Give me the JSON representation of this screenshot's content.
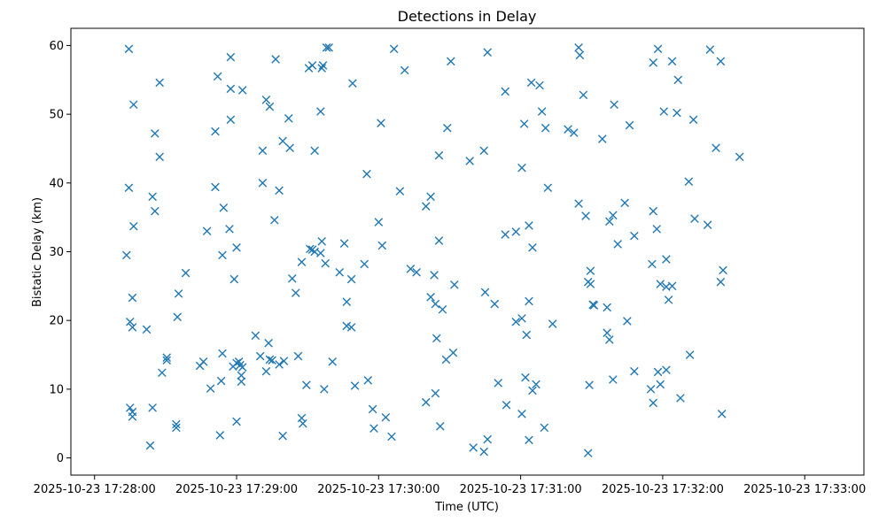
{
  "chart_data": {
    "type": "scatter",
    "title": "Detections in Delay",
    "xlabel": "Time (UTC)",
    "ylabel": "Bistatic Delay (km)",
    "marker": "x",
    "color": "#1f77b4",
    "grid": false,
    "xlim": [
      "2025-10-23 17:27:50",
      "2025-10-23 17:33:25"
    ],
    "ylim": [
      -2.5,
      62.5
    ],
    "x_ticks": [
      "2025-10-23 17:28:00",
      "2025-10-23 17:29:00",
      "2025-10-23 17:30:00",
      "2025-10-23 17:31:00",
      "2025-10-23 17:32:00",
      "2025-10-23 17:33:00"
    ],
    "y_ticks": [
      0,
      10,
      20,
      30,
      40,
      50,
      60
    ],
    "points": [
      [
        "2025-10-23 17:28:14.5",
        59.5
      ],
      [
        "2025-10-23 17:28:14.5",
        39.3
      ],
      [
        "2025-10-23 17:28:13.5",
        29.5
      ],
      [
        "2025-10-23 17:28:16.5",
        51.4
      ],
      [
        "2025-10-23 17:28:16.5",
        33.7
      ],
      [
        "2025-10-23 17:28:16.0",
        23.3
      ],
      [
        "2025-10-23 17:28:15.0",
        19.8
      ],
      [
        "2025-10-23 17:28:16.0",
        19.0
      ],
      [
        "2025-10-23 17:28:15.0",
        7.3
      ],
      [
        "2025-10-23 17:28:16.0",
        6.7
      ],
      [
        "2025-10-23 17:28:16.0",
        6.0
      ],
      [
        "2025-10-23 17:28:22.0",
        18.7
      ],
      [
        "2025-10-23 17:28:23.5",
        1.8
      ],
      [
        "2025-10-23 17:28:24.5",
        7.3
      ],
      [
        "2025-10-23 17:28:24.5",
        38.0
      ],
      [
        "2025-10-23 17:28:25.5",
        35.9
      ],
      [
        "2025-10-23 17:28:25.5",
        47.2
      ],
      [
        "2025-10-23 17:28:27.5",
        54.6
      ],
      [
        "2025-10-23 17:28:27.5",
        43.8
      ],
      [
        "2025-10-23 17:28:28.5",
        12.4
      ],
      [
        "2025-10-23 17:28:30.5",
        14.6
      ],
      [
        "2025-10-23 17:28:30.5",
        14.2
      ],
      [
        "2025-10-23 17:28:34.5",
        4.9
      ],
      [
        "2025-10-23 17:28:34.5",
        4.4
      ],
      [
        "2025-10-23 17:28:35.0",
        20.5
      ],
      [
        "2025-10-23 17:28:35.5",
        23.9
      ],
      [
        "2025-10-23 17:28:38.5",
        26.9
      ],
      [
        "2025-10-23 17:28:44.5",
        13.4
      ],
      [
        "2025-10-23 17:28:46.0",
        14.0
      ],
      [
        "2025-10-23 17:28:47.5",
        33.0
      ],
      [
        "2025-10-23 17:28:49.0",
        10.1
      ],
      [
        "2025-10-23 17:28:51.0",
        47.5
      ],
      [
        "2025-10-23 17:28:51.0",
        39.4
      ],
      [
        "2025-10-23 17:28:52.0",
        55.5
      ],
      [
        "2025-10-23 17:28:53.0",
        3.3
      ],
      [
        "2025-10-23 17:28:53.5",
        11.2
      ],
      [
        "2025-10-23 17:28:54.5",
        36.4
      ],
      [
        "2025-10-23 17:28:54.0",
        29.5
      ],
      [
        "2025-10-23 17:28:54.0",
        15.2
      ],
      [
        "2025-10-23 17:28:57.5",
        58.3
      ],
      [
        "2025-10-23 17:28:57.5",
        53.7
      ],
      [
        "2025-10-23 17:28:57.5",
        49.2
      ],
      [
        "2025-10-23 17:28:57.0",
        33.3
      ],
      [
        "2025-10-23 17:28:59.0",
        26.0
      ],
      [
        "2025-10-23 17:28:58.5",
        13.3
      ],
      [
        "2025-10-23 17:29:00.0",
        13.8
      ],
      [
        "2025-10-23 17:29:00.0",
        30.6
      ],
      [
        "2025-10-23 17:29:00.0",
        5.3
      ],
      [
        "2025-10-23 17:29:01.0",
        14.0
      ],
      [
        "2025-10-23 17:29:01.5",
        13.5
      ],
      [
        "2025-10-23 17:29:02.0",
        12.0
      ],
      [
        "2025-10-23 17:29:02.0",
        11.1
      ],
      [
        "2025-10-23 17:29:02.5",
        53.5
      ],
      [
        "2025-10-23 17:29:02.5",
        13.2
      ],
      [
        "2025-10-23 17:29:08.0",
        17.8
      ],
      [
        "2025-10-23 17:29:10.0",
        14.8
      ],
      [
        "2025-10-23 17:29:11.0",
        44.7
      ],
      [
        "2025-10-23 17:29:11.0",
        40.0
      ],
      [
        "2025-10-23 17:29:12.5",
        52.1
      ],
      [
        "2025-10-23 17:29:12.5",
        12.6
      ],
      [
        "2025-10-23 17:29:13.5",
        16.7
      ],
      [
        "2025-10-23 17:29:14.0",
        51.1
      ],
      [
        "2025-10-23 17:29:14.0",
        14.3
      ],
      [
        "2025-10-23 17:29:15.0",
        14.2
      ],
      [
        "2025-10-23 17:29:16.0",
        34.6
      ],
      [
        "2025-10-23 17:29:16.5",
        58.0
      ],
      [
        "2025-10-23 17:29:18.0",
        38.9
      ],
      [
        "2025-10-23 17:29:18.0",
        13.6
      ],
      [
        "2025-10-23 17:29:19.5",
        46.1
      ],
      [
        "2025-10-23 17:29:19.5",
        3.2
      ],
      [
        "2025-10-23 17:29:20.0",
        14.1
      ],
      [
        "2025-10-23 17:29:22.0",
        49.4
      ],
      [
        "2025-10-23 17:29:22.5",
        45.1
      ],
      [
        "2025-10-23 17:29:23.5",
        26.1
      ],
      [
        "2025-10-23 17:29:25.0",
        24.0
      ],
      [
        "2025-10-23 17:29:26.0",
        14.8
      ],
      [
        "2025-10-23 17:29:27.5",
        28.5
      ],
      [
        "2025-10-23 17:29:27.5",
        5.8
      ],
      [
        "2025-10-23 17:29:28.0",
        5.0
      ],
      [
        "2025-10-23 17:29:29.5",
        10.6
      ],
      [
        "2025-10-23 17:29:30.5",
        56.7
      ],
      [
        "2025-10-23 17:29:31.0",
        30.4
      ],
      [
        "2025-10-23 17:29:32.0",
        57.1
      ],
      [
        "2025-10-23 17:29:32.0",
        30.3
      ],
      [
        "2025-10-23 17:29:33.0",
        44.7
      ],
      [
        "2025-10-23 17:29:33.0",
        30.0
      ],
      [
        "2025-10-23 17:29:35.5",
        50.4
      ],
      [
        "2025-10-23 17:29:35.5",
        29.8
      ],
      [
        "2025-10-23 17:29:36.0",
        56.7
      ],
      [
        "2025-10-23 17:29:36.0",
        31.5
      ],
      [
        "2025-10-23 17:29:36.5",
        57.1
      ],
      [
        "2025-10-23 17:29:37.0",
        10.0
      ],
      [
        "2025-10-23 17:29:37.5",
        28.3
      ],
      [
        "2025-10-23 17:29:38.0",
        59.7
      ],
      [
        "2025-10-23 17:29:39.0",
        59.7
      ],
      [
        "2025-10-23 17:29:40.5",
        14.0
      ],
      [
        "2025-10-23 17:29:43.5",
        27.0
      ],
      [
        "2025-10-23 17:29:45.5",
        31.2
      ],
      [
        "2025-10-23 17:29:46.5",
        22.7
      ],
      [
        "2025-10-23 17:29:46.5",
        19.2
      ],
      [
        "2025-10-23 17:29:48.5",
        19.0
      ],
      [
        "2025-10-23 17:29:48.5",
        26.0
      ],
      [
        "2025-10-23 17:29:49.0",
        54.5
      ],
      [
        "2025-10-23 17:29:50.0",
        10.5
      ],
      [
        "2025-10-23 17:29:54.0",
        28.2
      ],
      [
        "2025-10-23 17:29:55.0",
        41.3
      ],
      [
        "2025-10-23 17:29:55.5",
        11.3
      ],
      [
        "2025-10-23 17:29:57.5",
        7.1
      ],
      [
        "2025-10-23 17:29:58.0",
        4.3
      ],
      [
        "2025-10-23 17:30:00.0",
        34.3
      ],
      [
        "2025-10-23 17:30:01.0",
        48.7
      ],
      [
        "2025-10-23 17:30:01.5",
        30.9
      ],
      [
        "2025-10-23 17:30:03.0",
        5.9
      ],
      [
        "2025-10-23 17:30:05.5",
        3.1
      ],
      [
        "2025-10-23 17:30:06.5",
        59.5
      ],
      [
        "2025-10-23 17:30:09.0",
        38.8
      ],
      [
        "2025-10-23 17:30:11.0",
        56.4
      ],
      [
        "2025-10-23 17:30:13.5",
        27.5
      ],
      [
        "2025-10-23 17:30:16.0",
        27.0
      ],
      [
        "2025-10-23 17:30:20.0",
        36.6
      ],
      [
        "2025-10-23 17:30:20.0",
        8.1
      ],
      [
        "2025-10-23 17:30:22.0",
        38.0
      ],
      [
        "2025-10-23 17:30:22.0",
        23.4
      ],
      [
        "2025-10-23 17:30:23.5",
        26.6
      ],
      [
        "2025-10-23 17:30:24.0",
        9.4
      ],
      [
        "2025-10-23 17:30:24.0",
        22.4
      ],
      [
        "2025-10-23 17:30:24.5",
        17.4
      ],
      [
        "2025-10-23 17:30:25.5",
        44.0
      ],
      [
        "2025-10-23 17:30:25.5",
        31.6
      ],
      [
        "2025-10-23 17:30:26.0",
        4.6
      ],
      [
        "2025-10-23 17:30:27.0",
        21.6
      ],
      [
        "2025-10-23 17:30:28.5",
        14.3
      ],
      [
        "2025-10-23 17:30:29.0",
        48.0
      ],
      [
        "2025-10-23 17:30:30.5",
        57.7
      ],
      [
        "2025-10-23 17:30:31.5",
        15.3
      ],
      [
        "2025-10-23 17:30:32.0",
        25.2
      ],
      [
        "2025-10-23 17:30:38.5",
        43.2
      ],
      [
        "2025-10-23 17:30:40.0",
        1.5
      ],
      [
        "2025-10-23 17:30:44.5",
        44.7
      ],
      [
        "2025-10-23 17:30:45.0",
        24.1
      ],
      [
        "2025-10-23 17:30:44.5",
        0.9
      ],
      [
        "2025-10-23 17:30:46.0",
        2.7
      ],
      [
        "2025-10-23 17:30:46.0",
        59.0
      ],
      [
        "2025-10-23 17:30:49.0",
        22.4
      ],
      [
        "2025-10-23 17:30:50.5",
        10.9
      ],
      [
        "2025-10-23 17:30:53.5",
        53.3
      ],
      [
        "2025-10-23 17:30:53.5",
        32.5
      ],
      [
        "2025-10-23 17:30:54.0",
        7.7
      ],
      [
        "2025-10-23 17:30:58.0",
        32.9
      ],
      [
        "2025-10-23 17:30:58.0",
        19.8
      ],
      [
        "2025-10-23 17:31:00.5",
        42.2
      ],
      [
        "2025-10-23 17:31:00.5",
        20.3
      ],
      [
        "2025-10-23 17:31:00.5",
        6.4
      ],
      [
        "2025-10-23 17:31:01.5",
        48.6
      ],
      [
        "2025-10-23 17:31:02.0",
        11.7
      ],
      [
        "2025-10-23 17:31:02.5",
        17.9
      ],
      [
        "2025-10-23 17:31:03.5",
        33.8
      ],
      [
        "2025-10-23 17:31:03.5",
        22.8
      ],
      [
        "2025-10-23 17:31:03.5",
        2.6
      ],
      [
        "2025-10-23 17:31:04.5",
        54.6
      ],
      [
        "2025-10-23 17:31:05.0",
        30.6
      ],
      [
        "2025-10-23 17:31:05.0",
        9.8
      ],
      [
        "2025-10-23 17:31:06.5",
        10.7
      ],
      [
        "2025-10-23 17:31:08.0",
        54.2
      ],
      [
        "2025-10-23 17:31:09.0",
        50.4
      ],
      [
        "2025-10-23 17:31:10.5",
        48.0
      ],
      [
        "2025-10-23 17:31:10.0",
        4.4
      ],
      [
        "2025-10-23 17:31:11.5",
        39.3
      ],
      [
        "2025-10-23 17:31:13.5",
        19.5
      ],
      [
        "2025-10-23 17:31:20.0",
        47.8
      ],
      [
        "2025-10-23 17:31:22.5",
        47.3
      ],
      [
        "2025-10-23 17:31:24.5",
        59.7
      ],
      [
        "2025-10-23 17:31:25.0",
        58.6
      ],
      [
        "2025-10-23 17:31:24.5",
        37.0
      ],
      [
        "2025-10-23 17:31:26.5",
        52.8
      ],
      [
        "2025-10-23 17:31:27.5",
        35.2
      ],
      [
        "2025-10-23 17:31:28.5",
        25.6
      ],
      [
        "2025-10-23 17:31:29.0",
        10.6
      ],
      [
        "2025-10-23 17:31:28.5",
        0.7
      ],
      [
        "2025-10-23 17:31:29.5",
        27.2
      ],
      [
        "2025-10-23 17:31:29.5",
        25.3
      ],
      [
        "2025-10-23 17:31:30.5",
        22.3
      ],
      [
        "2025-10-23 17:31:31.0",
        22.2
      ],
      [
        "2025-10-23 17:31:34.5",
        46.4
      ],
      [
        "2025-10-23 17:31:36.5",
        21.9
      ],
      [
        "2025-10-23 17:31:36.5",
        18.2
      ],
      [
        "2025-10-23 17:31:37.5",
        17.2
      ],
      [
        "2025-10-23 17:31:37.5",
        34.4
      ],
      [
        "2025-10-23 17:31:39.0",
        35.3
      ],
      [
        "2025-10-23 17:31:39.0",
        11.4
      ],
      [
        "2025-10-23 17:31:39.5",
        51.4
      ],
      [
        "2025-10-23 17:31:41.0",
        31.1
      ],
      [
        "2025-10-23 17:31:44.0",
        37.1
      ],
      [
        "2025-10-23 17:31:45.0",
        19.9
      ],
      [
        "2025-10-23 17:31:46.0",
        48.4
      ],
      [
        "2025-10-23 17:31:48.0",
        32.3
      ],
      [
        "2025-10-23 17:31:48.0",
        12.6
      ],
      [
        "2025-10-23 17:31:55.0",
        10.0
      ],
      [
        "2025-10-23 17:31:55.5",
        28.2
      ],
      [
        "2025-10-23 17:31:56.0",
        57.5
      ],
      [
        "2025-10-23 17:31:56.0",
        35.9
      ],
      [
        "2025-10-23 17:31:56.0",
        8.0
      ],
      [
        "2025-10-23 17:31:57.5",
        33.3
      ],
      [
        "2025-10-23 17:31:58.0",
        59.5
      ],
      [
        "2025-10-23 17:31:58.0",
        12.5
      ],
      [
        "2025-10-23 17:31:59.0",
        25.3
      ],
      [
        "2025-10-23 17:31:59.0",
        10.7
      ],
      [
        "2025-10-23 17:32:00.5",
        50.4
      ],
      [
        "2025-10-23 17:32:01.5",
        28.9
      ],
      [
        "2025-10-23 17:32:01.5",
        24.9
      ],
      [
        "2025-10-23 17:32:01.5",
        12.8
      ],
      [
        "2025-10-23 17:32:02.5",
        23.0
      ],
      [
        "2025-10-23 17:32:04.0",
        57.7
      ],
      [
        "2025-10-23 17:32:04.0",
        25.0
      ],
      [
        "2025-10-23 17:32:06.0",
        50.2
      ],
      [
        "2025-10-23 17:32:06.5",
        55.0
      ],
      [
        "2025-10-23 17:32:07.5",
        8.7
      ],
      [
        "2025-10-23 17:32:11.0",
        40.2
      ],
      [
        "2025-10-23 17:32:11.5",
        15.0
      ],
      [
        "2025-10-23 17:32:13.0",
        49.2
      ],
      [
        "2025-10-23 17:32:13.5",
        34.8
      ],
      [
        "2025-10-23 17:32:19.0",
        33.9
      ],
      [
        "2025-10-23 17:32:20.0",
        59.4
      ],
      [
        "2025-10-23 17:32:22.5",
        45.1
      ],
      [
        "2025-10-23 17:32:24.5",
        57.7
      ],
      [
        "2025-10-23 17:32:24.5",
        25.6
      ],
      [
        "2025-10-23 17:32:25.5",
        27.3
      ],
      [
        "2025-10-23 17:32:25.0",
        6.4
      ],
      [
        "2025-10-23 17:32:32.5",
        43.8
      ]
    ]
  }
}
